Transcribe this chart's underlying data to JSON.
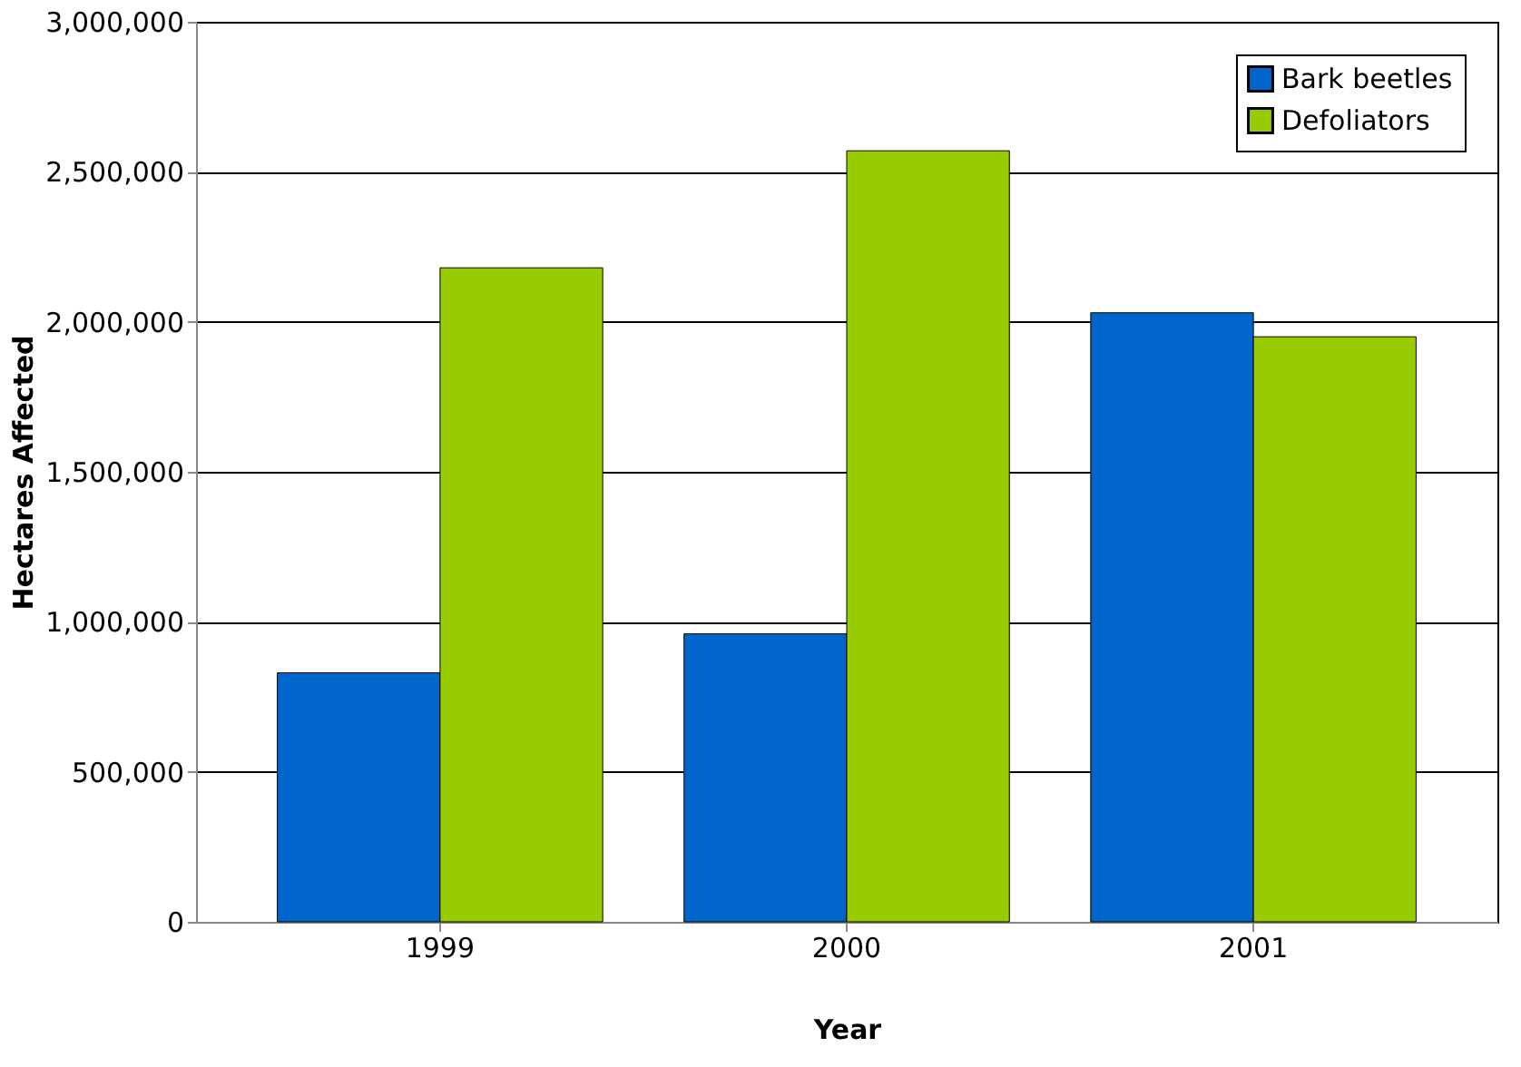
{
  "chart_data": {
    "type": "bar",
    "xlabel": "Year",
    "ylabel": "Hectares Affected",
    "categories": [
      "1999",
      "2000",
      "2001"
    ],
    "series": [
      {
        "name": "Bark beetles",
        "color": "#0066cc",
        "values": [
          830000,
          960000,
          2030000
        ]
      },
      {
        "name": "Defoliators",
        "color": "#99cc00",
        "values": [
          2180000,
          2570000,
          1950000
        ]
      }
    ],
    "ylim": [
      0,
      3000000
    ],
    "yticks": [
      0,
      {
        "value": 500000,
        "label": "500,000"
      },
      {
        "value": 1000000,
        "label": "1,000,000"
      },
      {
        "value": 1500000,
        "label": "1,500,000"
      },
      {
        "value": 2000000,
        "label": "2,000,000"
      },
      {
        "value": 2500000,
        "label": "2,500,000"
      },
      {
        "value": 3000000,
        "label": "3,000,000"
      }
    ],
    "grid": "y",
    "legend": "top right"
  }
}
